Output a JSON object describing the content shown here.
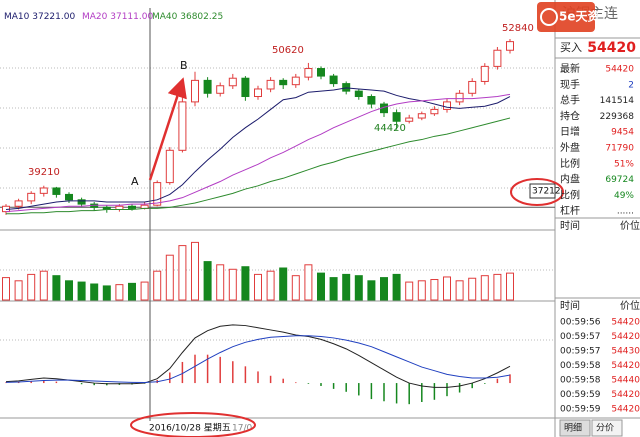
{
  "chart_data": {
    "type": "candlestick",
    "open": [
      36800,
      37300,
      37800,
      38500,
      39000,
      38400,
      37900,
      37500,
      37200,
      37000,
      37300,
      37100,
      37400,
      39500,
      42500,
      47000,
      49000,
      47800,
      48500,
      49200,
      47500,
      48200,
      49000,
      48600,
      49300,
      50100,
      49400,
      48700,
      48000,
      47500,
      46800,
      46000,
      45200,
      45500,
      45900,
      46300,
      47000,
      47800,
      48900,
      50300,
      51800
    ],
    "high": [
      37500,
      38000,
      38700,
      39210,
      39100,
      38600,
      38100,
      37700,
      37400,
      37500,
      37500,
      37700,
      39700,
      42800,
      47400,
      49800,
      49300,
      48800,
      49600,
      49400,
      48500,
      49300,
      49200,
      49600,
      50620,
      50300,
      49600,
      48900,
      48200,
      47700,
      47000,
      46300,
      45800,
      46100,
      46600,
      47300,
      48100,
      49200,
      50600,
      52100,
      52840
    ],
    "low": [
      36500,
      37000,
      37500,
      38200,
      38100,
      37600,
      37200,
      36900,
      36700,
      36800,
      36900,
      37000,
      37300,
      39300,
      42300,
      46600,
      47400,
      47500,
      48200,
      47100,
      47200,
      47900,
      48200,
      48300,
      49000,
      49100,
      48400,
      47700,
      47200,
      46400,
      45600,
      44420,
      45000,
      45300,
      45700,
      46000,
      46700,
      47500,
      48600,
      50000,
      51500
    ],
    "close": [
      37300,
      37800,
      38500,
      39000,
      38400,
      37900,
      37500,
      37200,
      37000,
      37300,
      37100,
      37400,
      39500,
      42500,
      47000,
      49000,
      47800,
      48500,
      49200,
      47500,
      48200,
      49000,
      48600,
      49300,
      50100,
      49400,
      48700,
      48000,
      47500,
      46800,
      46000,
      45200,
      45500,
      45900,
      46300,
      47000,
      47800,
      48900,
      50300,
      51800,
      52600
    ],
    "up_color": "#e03c3c",
    "down_color": "#15871e",
    "ylim": [
      35280,
      55540
    ],
    "series": [
      {
        "name": "MA10",
        "current": "37221.00",
        "color": "#1c1c6c",
        "values": [
          37000,
          37100,
          37300,
          37500,
          37700,
          37800,
          37800,
          37800,
          37700,
          37700,
          37700,
          37700,
          37900,
          38400,
          39300,
          40500,
          41600,
          42600,
          43700,
          44600,
          45400,
          46300,
          47200,
          47400,
          47900,
          48000,
          48100,
          48300,
          48200,
          48100,
          48000,
          47600,
          47300,
          47100,
          46800,
          46500,
          46400,
          46500,
          46600,
          46900,
          47500
        ]
      },
      {
        "name": "MA20",
        "current": "37111.00",
        "color": "#b23cc4",
        "values": [
          36800,
          36900,
          37000,
          37100,
          37200,
          37300,
          37300,
          37400,
          37400,
          37400,
          37500,
          37500,
          37600,
          37800,
          38100,
          38600,
          39100,
          39600,
          40200,
          40700,
          41200,
          41800,
          42300,
          42900,
          43500,
          44000,
          44600,
          45100,
          45600,
          46100,
          46500,
          46800,
          47000,
          47100,
          47200,
          47300,
          47300,
          47300,
          47400,
          47500,
          47700
        ]
      },
      {
        "name": "MA40",
        "current": "36802.25",
        "color": "#2e8b2e",
        "values": [
          36600,
          36600,
          36700,
          36700,
          36800,
          36800,
          36900,
          36900,
          37000,
          37000,
          37000,
          37100,
          37100,
          37200,
          37400,
          37600,
          37900,
          38200,
          38500,
          38900,
          39200,
          39600,
          39900,
          40300,
          40700,
          41100,
          41400,
          41800,
          42100,
          42400,
          42700,
          43000,
          43300,
          43500,
          43800,
          44000,
          44300,
          44600,
          44900,
          45200,
          45500
        ]
      }
    ],
    "annotations": [
      "39210",
      "50620",
      "44420",
      "52840",
      "A",
      "B"
    ],
    "cursor_price": 37212,
    "cursor_date": "2016/10/28 星期五",
    "next_date": "17/0",
    "volume": {
      "ylim": [
        0,
        100
      ],
      "values": [
        35,
        30,
        40,
        45,
        38,
        30,
        28,
        25,
        22,
        24,
        26,
        28,
        45,
        70,
        85,
        90,
        60,
        55,
        48,
        52,
        40,
        45,
        50,
        38,
        55,
        42,
        35,
        40,
        38,
        30,
        35,
        40,
        28,
        30,
        32,
        36,
        30,
        34,
        38,
        40,
        42
      ]
    },
    "macd": {
      "ylim": [
        -480,
        1100
      ],
      "bars": [
        10,
        15,
        25,
        35,
        20,
        0,
        -16,
        -29,
        -31,
        -25,
        -20,
        -8,
        42,
        145,
        290,
        390,
        390,
        360,
        300,
        230,
        160,
        100,
        60,
        10,
        -10,
        -40,
        -80,
        -120,
        -170,
        -220,
        -250,
        -280,
        -290,
        -260,
        -230,
        -180,
        -130,
        -70,
        -10,
        60,
        120
      ],
      "dif": [
        20,
        30,
        50,
        70,
        60,
        40,
        20,
        0,
        -10,
        -10,
        -10,
        0,
        60,
        200,
        420,
        620,
        720,
        780,
        800,
        790,
        760,
        730,
        700,
        660,
        640,
        600,
        540,
        470,
        380,
        280,
        180,
        80,
        0,
        -40,
        -60,
        -60,
        -40,
        0,
        60,
        140,
        230
      ],
      "dea": [
        10,
        15,
        25,
        35,
        40,
        40,
        36,
        29,
        21,
        15,
        10,
        8,
        18,
        55,
        130,
        230,
        330,
        420,
        500,
        560,
        600,
        630,
        640,
        650,
        650,
        640,
        620,
        590,
        550,
        500,
        430,
        360,
        290,
        220,
        170,
        120,
        90,
        70,
        70,
        80,
        110
      ]
    }
  },
  "panel": {
    "title": "沪铜主连",
    "logo": "5e天资",
    "bid": {
      "label": "买入",
      "value": 54420
    },
    "stats": [
      [
        "最新",
        54420
      ],
      [
        "现手",
        2
      ],
      [
        "总手",
        141514
      ],
      [
        "持仓",
        229368
      ],
      [
        "日增",
        9454
      ],
      [
        "外盘",
        71790
      ],
      [
        "比例",
        "51%"
      ],
      [
        "内盘",
        69724
      ],
      [
        "比例",
        "49%"
      ],
      [
        "杠杆",
        "......"
      ]
    ],
    "time_header": [
      "时间",
      "价位"
    ],
    "ticks": [
      [
        "00:59:56",
        54420
      ],
      [
        "00:59:57",
        54420
      ],
      [
        "00:59:57",
        54430
      ],
      [
        "00:59:58",
        54420
      ],
      [
        "00:59:58",
        54440
      ],
      [
        "00:59:59",
        54420
      ],
      [
        "00:59:59",
        54420
      ]
    ],
    "tabs": [
      "明细",
      "分价"
    ]
  }
}
